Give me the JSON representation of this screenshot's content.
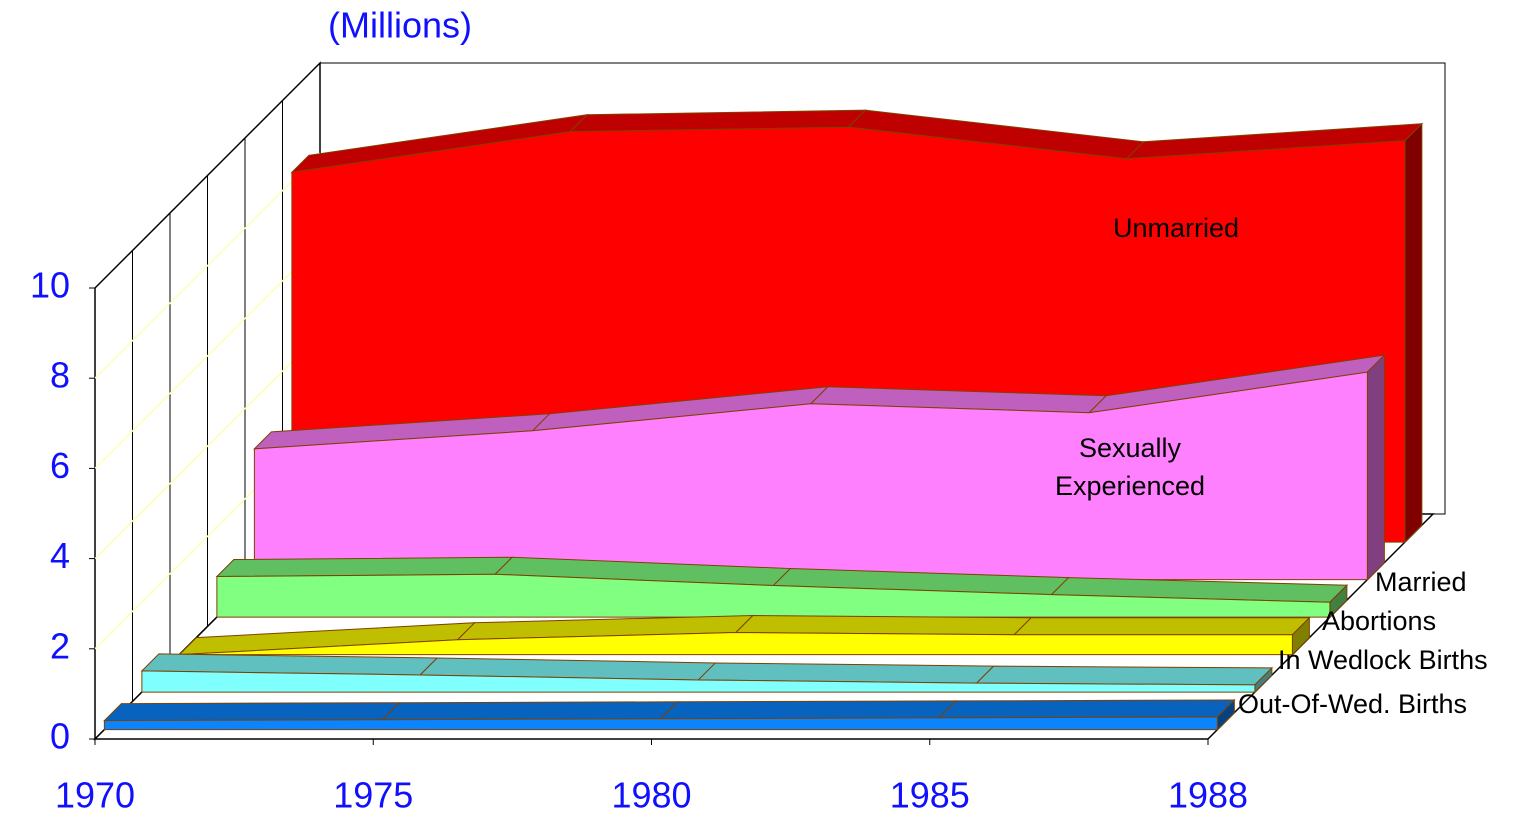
{
  "chart_data": {
    "type": "area3d",
    "y_label": "(Millions)",
    "categories": [
      "1970",
      "1975",
      "1980",
      "1985",
      "1988"
    ],
    "ylim": [
      0,
      10
    ],
    "yticks": [
      0,
      2,
      4,
      6,
      8,
      10
    ],
    "grid": true,
    "series": [
      {
        "name": "Out-Of-Wed. Births",
        "color": "#0a84ff",
        "values": [
          0.2,
          0.22,
          0.24,
          0.26,
          0.28
        ]
      },
      {
        "name": "In Wedlock Births",
        "color": "#80ffff",
        "values": [
          0.47,
          0.38,
          0.27,
          0.2,
          0.16
        ]
      },
      {
        "name": "Abortions",
        "color": "#ffff00",
        "values": [
          0,
          0.33,
          0.49,
          0.44,
          0.44
        ]
      },
      {
        "name": "Married",
        "color": "#80ff80",
        "values": [
          0.9,
          0.95,
          0.7,
          0.5,
          0.33
        ]
      },
      {
        "name": "Sexually Experienced",
        "color": "#ff80ff",
        "values": [
          2.9,
          3.3,
          3.9,
          3.7,
          4.6
        ]
      },
      {
        "name": "Unmarried",
        "color": "#ff0000",
        "values": [
          8.2,
          9.1,
          9.2,
          8.5,
          8.9
        ]
      }
    ]
  }
}
